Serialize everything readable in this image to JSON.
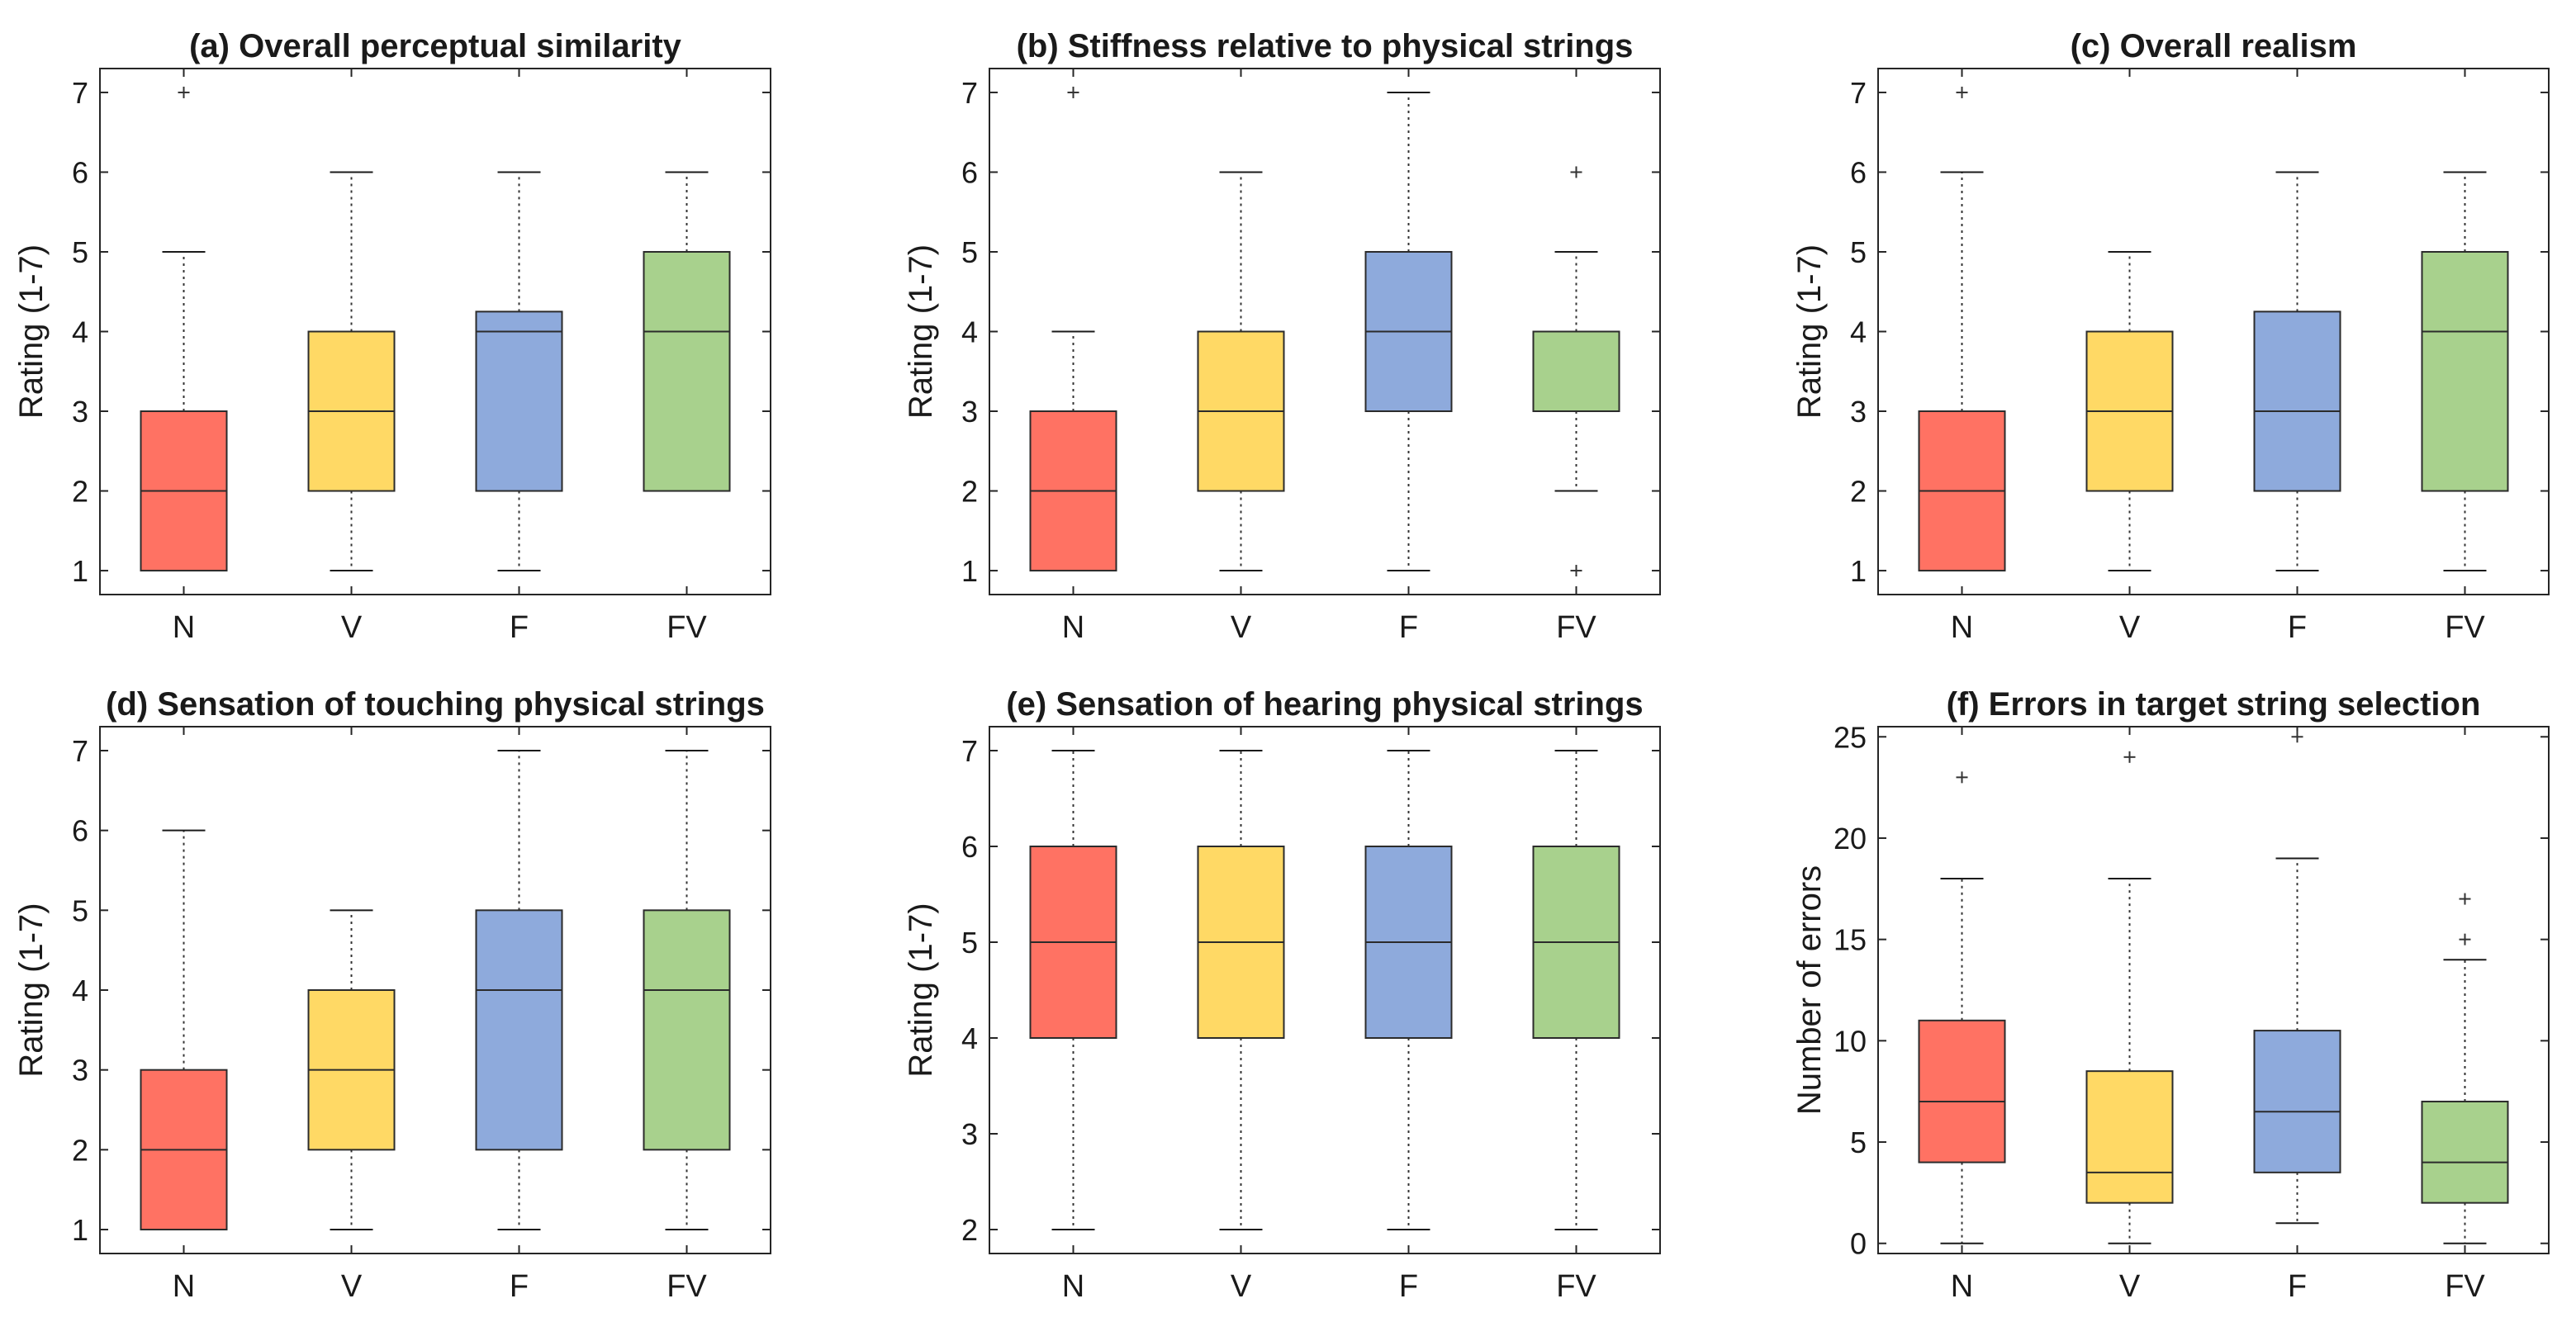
{
  "colors": {
    "N": "#ff7263",
    "V": "#ffd965",
    "F": "#8eaadc",
    "FV": "#a8d18d"
  },
  "chart_data": [
    {
      "type": "box",
      "title": "(a) Overall perceptual similarity",
      "ylabel": "Rating (1-7)",
      "ylim": [
        0.7,
        7.3
      ],
      "yticks": [
        "1",
        "2",
        "3",
        "4",
        "5",
        "6",
        "7"
      ],
      "categories": [
        "N",
        "V",
        "F",
        "FV"
      ],
      "boxes": [
        {
          "q1": 1,
          "median": 2,
          "q3": 3,
          "whisker_low": 1,
          "whisker_high": 5,
          "outliers": [
            7
          ]
        },
        {
          "q1": 2,
          "median": 3,
          "q3": 4,
          "whisker_low": 1,
          "whisker_high": 6,
          "outliers": []
        },
        {
          "q1": 2,
          "median": 4,
          "q3": 4.25,
          "whisker_low": 1,
          "whisker_high": 6,
          "outliers": []
        },
        {
          "q1": 2,
          "median": 4,
          "q3": 5,
          "whisker_low": 2,
          "whisker_high": 6,
          "outliers": []
        }
      ]
    },
    {
      "type": "box",
      "title": "(b) Stiffness relative to physical strings",
      "ylabel": "Rating (1-7)",
      "ylim": [
        0.7,
        7.3
      ],
      "yticks": [
        "1",
        "2",
        "3",
        "4",
        "5",
        "6",
        "7"
      ],
      "categories": [
        "N",
        "V",
        "F",
        "FV"
      ],
      "boxes": [
        {
          "q1": 1,
          "median": 2,
          "q3": 3,
          "whisker_low": 1,
          "whisker_high": 4,
          "outliers": [
            7
          ]
        },
        {
          "q1": 2,
          "median": 3,
          "q3": 4,
          "whisker_low": 1,
          "whisker_high": 6,
          "outliers": []
        },
        {
          "q1": 3,
          "median": 4,
          "q3": 5,
          "whisker_low": 1,
          "whisker_high": 7,
          "outliers": []
        },
        {
          "q1": 3,
          "median": 4,
          "q3": 4,
          "whisker_low": 2,
          "whisker_high": 5,
          "outliers": [
            6,
            1
          ]
        }
      ]
    },
    {
      "type": "box",
      "title": "(c) Overall realism",
      "ylabel": "Rating (1-7)",
      "ylim": [
        0.7,
        7.3
      ],
      "yticks": [
        "1",
        "2",
        "3",
        "4",
        "5",
        "6",
        "7"
      ],
      "categories": [
        "N",
        "V",
        "F",
        "FV"
      ],
      "boxes": [
        {
          "q1": 1,
          "median": 2,
          "q3": 3,
          "whisker_low": 1,
          "whisker_high": 6,
          "outliers": [
            7
          ]
        },
        {
          "q1": 2,
          "median": 3,
          "q3": 4,
          "whisker_low": 1,
          "whisker_high": 5,
          "outliers": []
        },
        {
          "q1": 2,
          "median": 3,
          "q3": 4.25,
          "whisker_low": 1,
          "whisker_high": 6,
          "outliers": []
        },
        {
          "q1": 2,
          "median": 4,
          "q3": 5,
          "whisker_low": 1,
          "whisker_high": 6,
          "outliers": []
        }
      ]
    },
    {
      "type": "box",
      "title": "(d) Sensation of touching physical strings",
      "ylabel": "Rating (1-7)",
      "ylim": [
        0.7,
        7.3
      ],
      "yticks": [
        "1",
        "2",
        "3",
        "4",
        "5",
        "6",
        "7"
      ],
      "categories": [
        "N",
        "V",
        "F",
        "FV"
      ],
      "boxes": [
        {
          "q1": 1,
          "median": 2,
          "q3": 3,
          "whisker_low": 1,
          "whisker_high": 6,
          "outliers": []
        },
        {
          "q1": 2,
          "median": 3,
          "q3": 4,
          "whisker_low": 1,
          "whisker_high": 5,
          "outliers": []
        },
        {
          "q1": 2,
          "median": 4,
          "q3": 5,
          "whisker_low": 1,
          "whisker_high": 7,
          "outliers": []
        },
        {
          "q1": 2,
          "median": 4,
          "q3": 5,
          "whisker_low": 1,
          "whisker_high": 7,
          "outliers": []
        }
      ]
    },
    {
      "type": "box",
      "title": "(e) Sensation of hearing physical strings",
      "ylabel": "Rating (1-7)",
      "ylim": [
        1.75,
        7.25
      ],
      "yticks": [
        "2",
        "3",
        "4",
        "5",
        "6",
        "7"
      ],
      "categories": [
        "N",
        "V",
        "F",
        "FV"
      ],
      "boxes": [
        {
          "q1": 4,
          "median": 5,
          "q3": 6,
          "whisker_low": 2,
          "whisker_high": 7,
          "outliers": []
        },
        {
          "q1": 4,
          "median": 5,
          "q3": 6,
          "whisker_low": 2,
          "whisker_high": 7,
          "outliers": []
        },
        {
          "q1": 4,
          "median": 5,
          "q3": 6,
          "whisker_low": 2,
          "whisker_high": 7,
          "outliers": []
        },
        {
          "q1": 4,
          "median": 5,
          "q3": 6,
          "whisker_low": 2,
          "whisker_high": 7,
          "outliers": []
        }
      ]
    },
    {
      "type": "box",
      "title": "(f) Errors in target string selection",
      "ylabel": "Number of errors",
      "ylim": [
        -0.5,
        25.5
      ],
      "yticks": [
        "0",
        "5",
        "10",
        "15",
        "20",
        "25"
      ],
      "categories": [
        "N",
        "V",
        "F",
        "FV"
      ],
      "boxes": [
        {
          "q1": 4,
          "median": 7,
          "q3": 11,
          "whisker_low": 0,
          "whisker_high": 18,
          "outliers": [
            23
          ]
        },
        {
          "q1": 2,
          "median": 3.5,
          "q3": 8.5,
          "whisker_low": 0,
          "whisker_high": 18,
          "outliers": [
            24
          ]
        },
        {
          "q1": 3.5,
          "median": 6.5,
          "q3": 10.5,
          "whisker_low": 1,
          "whisker_high": 19,
          "outliers": [
            25
          ]
        },
        {
          "q1": 2,
          "median": 4,
          "q3": 7,
          "whisker_low": 0,
          "whisker_high": 14,
          "outliers": [
            17,
            15
          ]
        }
      ]
    }
  ]
}
